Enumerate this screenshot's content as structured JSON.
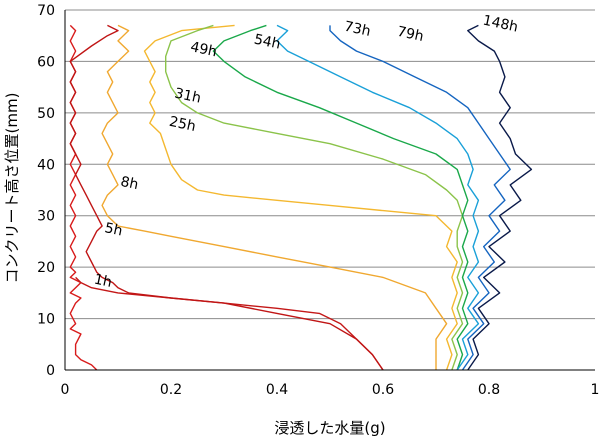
{
  "chart_data": {
    "type": "line",
    "title": "",
    "xlabel": "浸透した水量(g)",
    "ylabel": "コンクリート高さ位置(mm)",
    "xlim": [
      0,
      1
    ],
    "ylim": [
      0,
      70
    ],
    "x_ticks": [
      "0",
      "0.2",
      "0.4",
      "0.6",
      "0.8",
      "1"
    ],
    "y_ticks": [
      "0",
      "10",
      "20",
      "30",
      "40",
      "50",
      "60",
      "70"
    ],
    "grid": "horizontal",
    "legend": "none",
    "series": [
      {
        "name": "1h",
        "color": "#d81b1b",
        "points": [
          [
            0.06,
            0
          ],
          [
            0.05,
            1
          ],
          [
            0.03,
            2
          ],
          [
            0.02,
            3
          ],
          [
            0.02,
            5
          ],
          [
            0.03,
            7
          ],
          [
            0.01,
            8
          ],
          [
            0.02,
            9
          ],
          [
            0.01,
            11
          ],
          [
            0.02,
            13
          ],
          [
            0.03,
            14
          ],
          [
            0.01,
            15
          ],
          [
            0.02,
            16
          ],
          [
            0.03,
            17
          ],
          [
            0.01,
            18
          ],
          [
            0.02,
            19
          ],
          [
            0.01,
            20
          ],
          [
            0.02,
            22
          ],
          [
            0.01,
            24
          ],
          [
            0.02,
            26
          ],
          [
            0.01,
            28
          ],
          [
            0.02,
            30
          ],
          [
            0.01,
            32
          ],
          [
            0.02,
            34
          ],
          [
            0.01,
            36
          ],
          [
            0.02,
            38
          ],
          [
            0.01,
            40
          ],
          [
            0.02,
            42
          ],
          [
            0.01,
            44
          ],
          [
            0.02,
            46
          ],
          [
            0.01,
            48
          ],
          [
            0.02,
            50
          ],
          [
            0.01,
            52
          ],
          [
            0.02,
            54
          ],
          [
            0.01,
            56
          ],
          [
            0.02,
            58
          ],
          [
            0.01,
            60
          ],
          [
            0.02,
            62
          ],
          [
            0.01,
            64
          ],
          [
            0.02,
            66
          ],
          [
            0.01,
            67
          ]
        ]
      },
      {
        "name": "5h",
        "color": "#c41818",
        "points": [
          [
            0.6,
            0
          ],
          [
            0.58,
            3
          ],
          [
            0.55,
            6
          ],
          [
            0.52,
            9
          ],
          [
            0.48,
            11
          ],
          [
            0.4,
            12
          ],
          [
            0.3,
            13
          ],
          [
            0.2,
            14
          ],
          [
            0.1,
            15
          ],
          [
            0.05,
            16
          ],
          [
            0.03,
            17
          ],
          [
            0.02,
            18
          ]
        ]
      },
      {
        "name": "8h",
        "color": "#c01515",
        "points": [
          [
            0.6,
            0
          ],
          [
            0.58,
            3
          ],
          [
            0.55,
            6
          ],
          [
            0.5,
            9
          ],
          [
            0.4,
            11
          ],
          [
            0.3,
            13
          ],
          [
            0.2,
            14
          ],
          [
            0.12,
            15
          ],
          [
            0.1,
            16
          ],
          [
            0.09,
            17
          ],
          [
            0.07,
            18
          ],
          [
            0.06,
            19
          ],
          [
            0.05,
            21
          ],
          [
            0.04,
            23
          ],
          [
            0.05,
            25
          ],
          [
            0.06,
            27
          ],
          [
            0.07,
            28
          ],
          [
            0.06,
            30
          ],
          [
            0.05,
            32
          ],
          [
            0.04,
            34
          ],
          [
            0.03,
            36
          ],
          [
            0.02,
            38
          ],
          [
            0.03,
            40
          ],
          [
            0.02,
            42
          ],
          [
            0.01,
            44
          ],
          [
            0.02,
            46
          ],
          [
            0.01,
            48
          ],
          [
            0.02,
            50
          ],
          [
            0.01,
            52
          ],
          [
            0.02,
            54
          ],
          [
            0.01,
            56
          ],
          [
            0.02,
            58
          ],
          [
            0.01,
            60
          ],
          [
            0.05,
            63
          ],
          [
            0.08,
            65
          ],
          [
            0.1,
            66
          ],
          [
            0.08,
            67
          ]
        ]
      },
      {
        "name": "25h",
        "color": "#f0a830",
        "points": [
          [
            0.7,
            0
          ],
          [
            0.7,
            3
          ],
          [
            0.7,
            6
          ],
          [
            0.72,
            9
          ],
          [
            0.7,
            12
          ],
          [
            0.68,
            15
          ],
          [
            0.6,
            18
          ],
          [
            0.5,
            20
          ],
          [
            0.4,
            22
          ],
          [
            0.3,
            24
          ],
          [
            0.2,
            26
          ],
          [
            0.15,
            27
          ],
          [
            0.1,
            28
          ],
          [
            0.08,
            30
          ],
          [
            0.07,
            32
          ],
          [
            0.08,
            34
          ],
          [
            0.1,
            36
          ],
          [
            0.09,
            38
          ],
          [
            0.08,
            40
          ],
          [
            0.09,
            42
          ],
          [
            0.08,
            44
          ],
          [
            0.07,
            46
          ],
          [
            0.08,
            48
          ],
          [
            0.1,
            50
          ],
          [
            0.09,
            52
          ],
          [
            0.08,
            54
          ],
          [
            0.09,
            56
          ],
          [
            0.08,
            58
          ],
          [
            0.1,
            60
          ],
          [
            0.12,
            62
          ],
          [
            0.1,
            64
          ],
          [
            0.12,
            66
          ],
          [
            0.1,
            67
          ]
        ]
      },
      {
        "name": "31h",
        "color": "#f4b830",
        "points": [
          [
            0.72,
            0
          ],
          [
            0.73,
            3
          ],
          [
            0.72,
            6
          ],
          [
            0.74,
            9
          ],
          [
            0.73,
            12
          ],
          [
            0.74,
            15
          ],
          [
            0.73,
            18
          ],
          [
            0.74,
            21
          ],
          [
            0.72,
            24
          ],
          [
            0.73,
            27
          ],
          [
            0.7,
            30
          ],
          [
            0.6,
            31
          ],
          [
            0.5,
            32
          ],
          [
            0.4,
            33
          ],
          [
            0.3,
            34
          ],
          [
            0.25,
            35
          ],
          [
            0.22,
            37
          ],
          [
            0.2,
            40
          ],
          [
            0.19,
            43
          ],
          [
            0.18,
            46
          ],
          [
            0.16,
            48
          ],
          [
            0.17,
            50
          ],
          [
            0.16,
            52
          ],
          [
            0.17,
            54
          ],
          [
            0.16,
            56
          ],
          [
            0.17,
            58
          ],
          [
            0.16,
            60
          ],
          [
            0.15,
            62
          ],
          [
            0.17,
            64
          ],
          [
            0.22,
            66
          ],
          [
            0.32,
            67
          ]
        ]
      },
      {
        "name": "49h",
        "color": "#8bc34a",
        "points": [
          [
            0.73,
            0
          ],
          [
            0.74,
            3
          ],
          [
            0.73,
            6
          ],
          [
            0.75,
            9
          ],
          [
            0.74,
            12
          ],
          [
            0.75,
            15
          ],
          [
            0.74,
            18
          ],
          [
            0.75,
            21
          ],
          [
            0.74,
            24
          ],
          [
            0.74,
            27
          ],
          [
            0.75,
            30
          ],
          [
            0.74,
            33
          ],
          [
            0.72,
            35
          ],
          [
            0.68,
            38
          ],
          [
            0.6,
            41
          ],
          [
            0.5,
            44
          ],
          [
            0.4,
            46
          ],
          [
            0.3,
            48
          ],
          [
            0.25,
            50
          ],
          [
            0.22,
            52
          ],
          [
            0.2,
            55
          ],
          [
            0.19,
            58
          ],
          [
            0.19,
            61
          ],
          [
            0.2,
            64
          ],
          [
            0.25,
            66
          ],
          [
            0.28,
            67
          ]
        ]
      },
      {
        "name": "54h",
        "color": "#1aa84a",
        "points": [
          [
            0.74,
            0
          ],
          [
            0.75,
            3
          ],
          [
            0.74,
            6
          ],
          [
            0.76,
            9
          ],
          [
            0.75,
            12
          ],
          [
            0.76,
            15
          ],
          [
            0.75,
            18
          ],
          [
            0.76,
            21
          ],
          [
            0.75,
            24
          ],
          [
            0.76,
            27
          ],
          [
            0.75,
            30
          ],
          [
            0.76,
            33
          ],
          [
            0.75,
            36
          ],
          [
            0.74,
            39
          ],
          [
            0.7,
            42
          ],
          [
            0.62,
            45
          ],
          [
            0.55,
            48
          ],
          [
            0.48,
            51
          ],
          [
            0.4,
            54
          ],
          [
            0.34,
            57
          ],
          [
            0.3,
            60
          ],
          [
            0.28,
            62
          ],
          [
            0.3,
            64
          ],
          [
            0.35,
            66
          ],
          [
            0.38,
            67
          ]
        ]
      },
      {
        "name": "73h",
        "color": "#1aa0d8",
        "points": [
          [
            0.74,
            0
          ],
          [
            0.76,
            3
          ],
          [
            0.75,
            6
          ],
          [
            0.78,
            9
          ],
          [
            0.76,
            12
          ],
          [
            0.78,
            15
          ],
          [
            0.76,
            18
          ],
          [
            0.78,
            21
          ],
          [
            0.77,
            24
          ],
          [
            0.78,
            27
          ],
          [
            0.77,
            30
          ],
          [
            0.78,
            33
          ],
          [
            0.76,
            36
          ],
          [
            0.77,
            39
          ],
          [
            0.76,
            42
          ],
          [
            0.74,
            45
          ],
          [
            0.7,
            48
          ],
          [
            0.65,
            51
          ],
          [
            0.58,
            54
          ],
          [
            0.52,
            57
          ],
          [
            0.46,
            60
          ],
          [
            0.42,
            62
          ],
          [
            0.4,
            64
          ],
          [
            0.42,
            66
          ],
          [
            0.4,
            67
          ]
        ]
      },
      {
        "name": "79h",
        "color": "#1565c0",
        "points": [
          [
            0.75,
            0
          ],
          [
            0.77,
            3
          ],
          [
            0.76,
            6
          ],
          [
            0.79,
            9
          ],
          [
            0.77,
            12
          ],
          [
            0.8,
            15
          ],
          [
            0.78,
            18
          ],
          [
            0.81,
            21
          ],
          [
            0.79,
            24
          ],
          [
            0.82,
            27
          ],
          [
            0.8,
            30
          ],
          [
            0.83,
            33
          ],
          [
            0.81,
            36
          ],
          [
            0.84,
            39
          ],
          [
            0.82,
            42
          ],
          [
            0.8,
            45
          ],
          [
            0.78,
            48
          ],
          [
            0.76,
            51
          ],
          [
            0.72,
            54
          ],
          [
            0.66,
            57
          ],
          [
            0.6,
            60
          ],
          [
            0.55,
            62
          ],
          [
            0.52,
            64
          ],
          [
            0.5,
            66
          ],
          [
            0.5,
            67
          ]
        ]
      },
      {
        "name": "148h",
        "color": "#0a1a4a",
        "points": [
          [
            0.76,
            0
          ],
          [
            0.78,
            3
          ],
          [
            0.77,
            6
          ],
          [
            0.8,
            9
          ],
          [
            0.78,
            12
          ],
          [
            0.82,
            15
          ],
          [
            0.79,
            18
          ],
          [
            0.83,
            21
          ],
          [
            0.8,
            24
          ],
          [
            0.84,
            27
          ],
          [
            0.82,
            30
          ],
          [
            0.86,
            33
          ],
          [
            0.84,
            36
          ],
          [
            0.88,
            39
          ],
          [
            0.85,
            42
          ],
          [
            0.84,
            45
          ],
          [
            0.82,
            48
          ],
          [
            0.84,
            51
          ],
          [
            0.82,
            54
          ],
          [
            0.83,
            57
          ],
          [
            0.82,
            60
          ],
          [
            0.81,
            62
          ],
          [
            0.78,
            64
          ],
          [
            0.76,
            66
          ],
          [
            0.78,
            67
          ]
        ]
      }
    ],
    "labels": [
      {
        "text": "1h",
        "x": 0.07,
        "y": 16.5
      },
      {
        "text": "5h",
        "x": 0.09,
        "y": 26.5
      },
      {
        "text": "8h",
        "x": 0.12,
        "y": 35.5
      },
      {
        "text": "25h",
        "x": 0.22,
        "y": 47
      },
      {
        "text": "31h",
        "x": 0.23,
        "y": 52.5
      },
      {
        "text": "49h",
        "x": 0.26,
        "y": 61.5
      },
      {
        "text": "54h",
        "x": 0.38,
        "y": 63
      },
      {
        "text": "73h",
        "x": 0.55,
        "y": 65.5
      },
      {
        "text": "79h",
        "x": 0.65,
        "y": 64.5
      },
      {
        "text": "148h",
        "x": 0.82,
        "y": 66.5
      }
    ]
  }
}
